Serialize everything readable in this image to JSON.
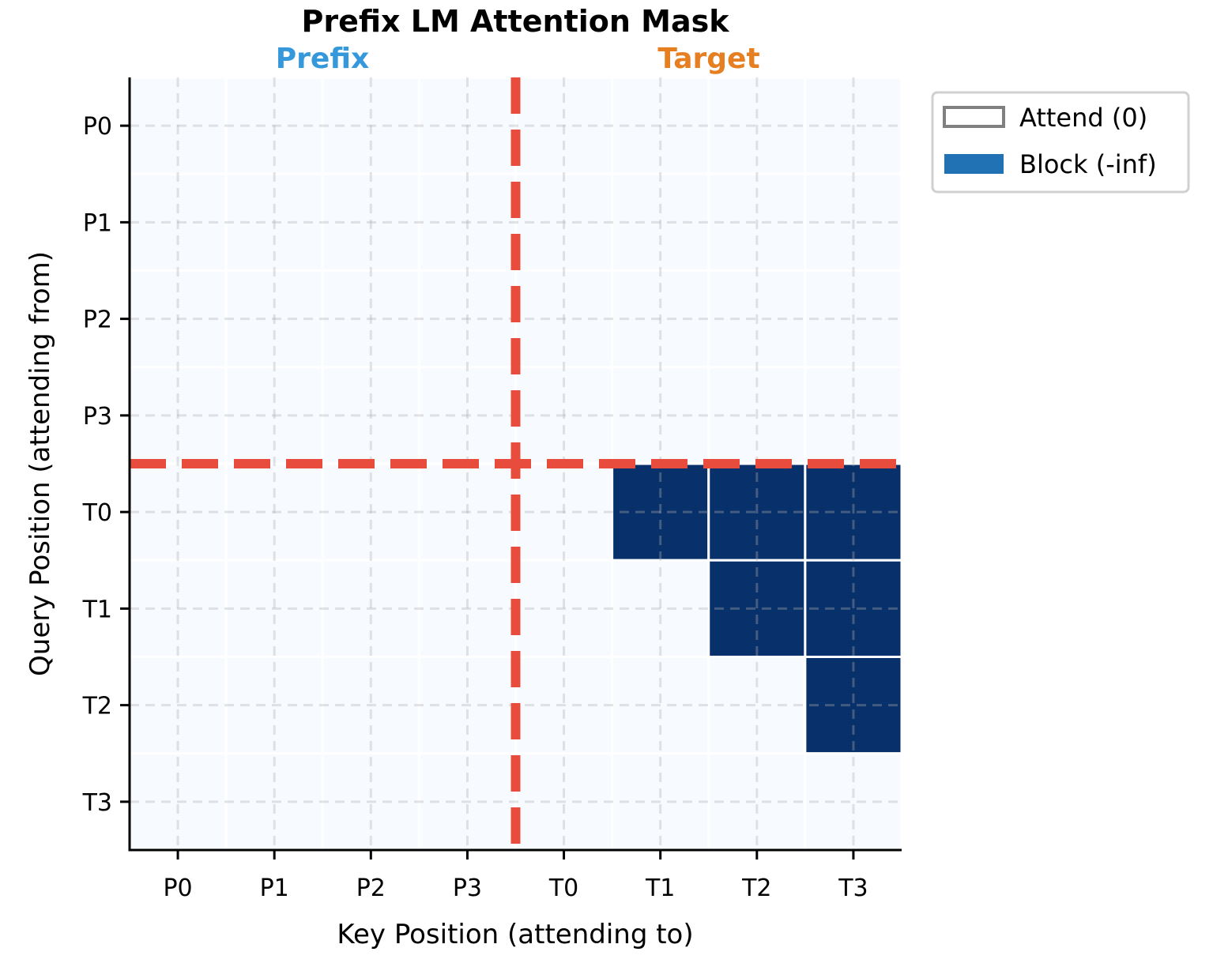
{
  "chart_data": {
    "type": "heatmap",
    "title": "Prefix LM Attention Mask",
    "xlabel": "Key Position (attending to)",
    "ylabel": "Query Position (attending from)",
    "x_categories": [
      "P0",
      "P1",
      "P2",
      "P3",
      "T0",
      "T1",
      "T2",
      "T3"
    ],
    "y_categories": [
      "P0",
      "P1",
      "P2",
      "P3",
      "T0",
      "T1",
      "T2",
      "T3"
    ],
    "values": [
      [
        0,
        0,
        0,
        0,
        0,
        0,
        0,
        0
      ],
      [
        0,
        0,
        0,
        0,
        0,
        0,
        0,
        0
      ],
      [
        0,
        0,
        0,
        0,
        0,
        0,
        0,
        0
      ],
      [
        0,
        0,
        0,
        0,
        0,
        0,
        0,
        0
      ],
      [
        0,
        0,
        0,
        0,
        0,
        1,
        1,
        1
      ],
      [
        0,
        0,
        0,
        0,
        0,
        0,
        1,
        1
      ],
      [
        0,
        0,
        0,
        0,
        0,
        0,
        0,
        1
      ],
      [
        0,
        0,
        0,
        0,
        0,
        0,
        0,
        0
      ]
    ],
    "colormap": {
      "attend": "#f7fbff",
      "block": "#08306b"
    },
    "grid": true,
    "boundary_lines": {
      "x": 3.5,
      "y": 3.5,
      "color": "#e74c3c",
      "style": "dashed"
    },
    "region_labels": [
      {
        "text": "Prefix",
        "color": "#3498db"
      },
      {
        "text": "Target",
        "color": "#e67e22"
      }
    ],
    "legend": {
      "placement": "outside-top-right",
      "entries": [
        {
          "label": "Attend (0)",
          "color": "#ffffff",
          "edge": "#808080"
        },
        {
          "label": "Block (-inf)",
          "color": "#2171b5",
          "edge": "#2171b5"
        }
      ]
    }
  }
}
